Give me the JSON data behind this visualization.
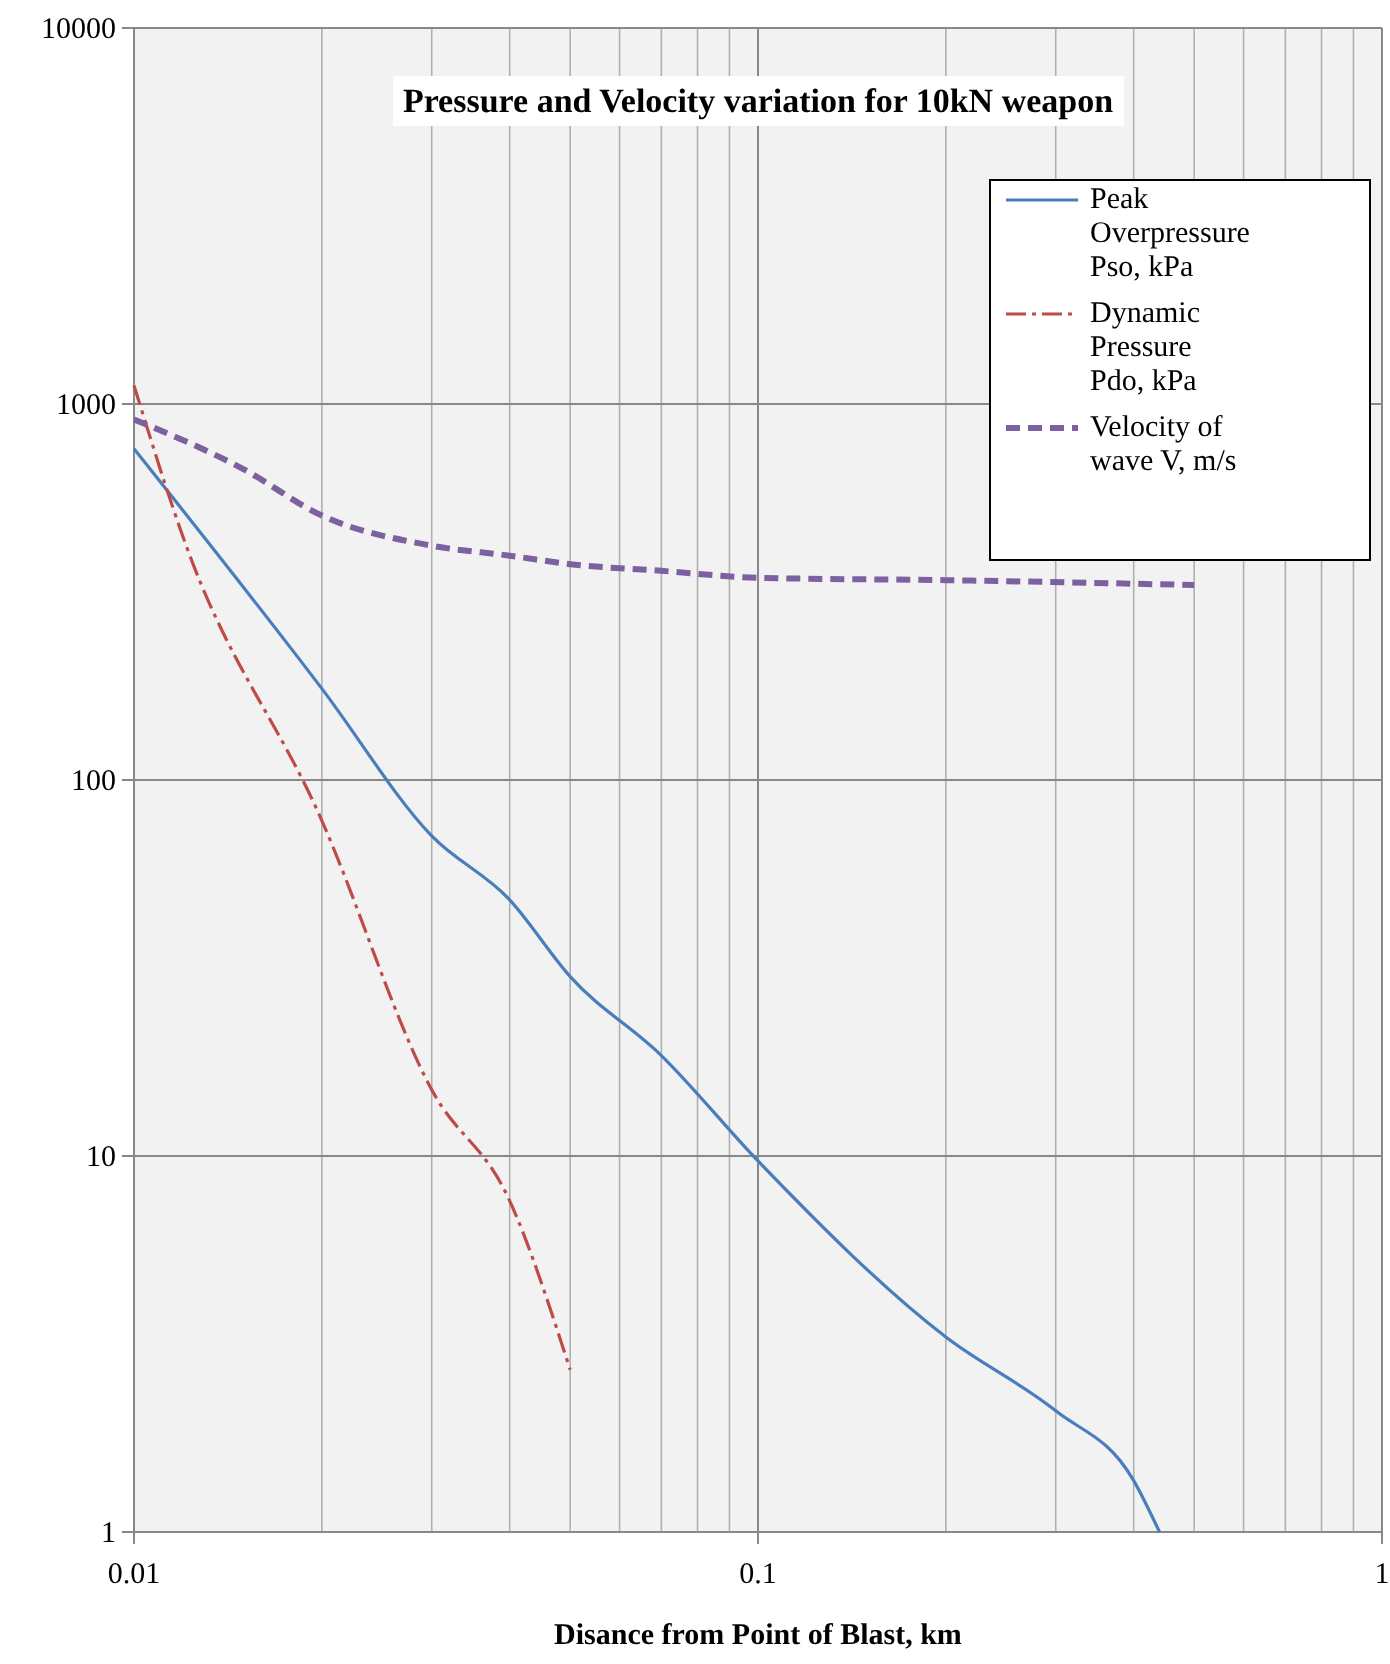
{
  "chart_data": {
    "type": "line",
    "title": "Pressure  and Velocity variation for 10kN weapon",
    "xlabel": "Disance from Point of Blast, km",
    "log": "xy",
    "xlim": [
      0.01,
      1
    ],
    "xticks": [
      0.01,
      0.1,
      1
    ],
    "ylim": [
      1,
      10000
    ],
    "yticks": [
      1,
      10,
      100,
      1000,
      10000
    ],
    "grid": true,
    "legend": "top right",
    "marker": "none",
    "series": [
      {
        "name": "Peak Overpressure Pso, kPa",
        "color": "#4a7ebb",
        "line_style": "solid",
        "x": [
          0.01,
          0.02,
          0.03,
          0.04,
          0.05,
          0.07,
          0.1,
          0.2,
          0.3,
          0.4,
          0.44
        ],
        "values": [
          760,
          175,
          71,
          48,
          30,
          18.5,
          9.7,
          3.3,
          2.1,
          1.37,
          1
        ]
      },
      {
        "name": "Dynamic Pressure Pdo, kPa",
        "color": "#be4b48",
        "line_style": "dotted",
        "x": [
          0.01,
          0.012,
          0.02,
          0.03,
          0.04,
          0.05
        ],
        "values": [
          1120,
          440,
          78,
          15,
          7.6,
          2.7
        ]
      },
      {
        "name": "Velocity of wave V, m/s",
        "color": "#7d60a0",
        "line_style": "dashed",
        "x": [
          0.01,
          0.015,
          0.02,
          0.03,
          0.04,
          0.05,
          0.07,
          0.1,
          0.2,
          0.5
        ],
        "values": [
          910,
          670,
          505,
          420,
          395,
          375,
          360,
          345,
          340,
          330
        ]
      }
    ]
  }
}
